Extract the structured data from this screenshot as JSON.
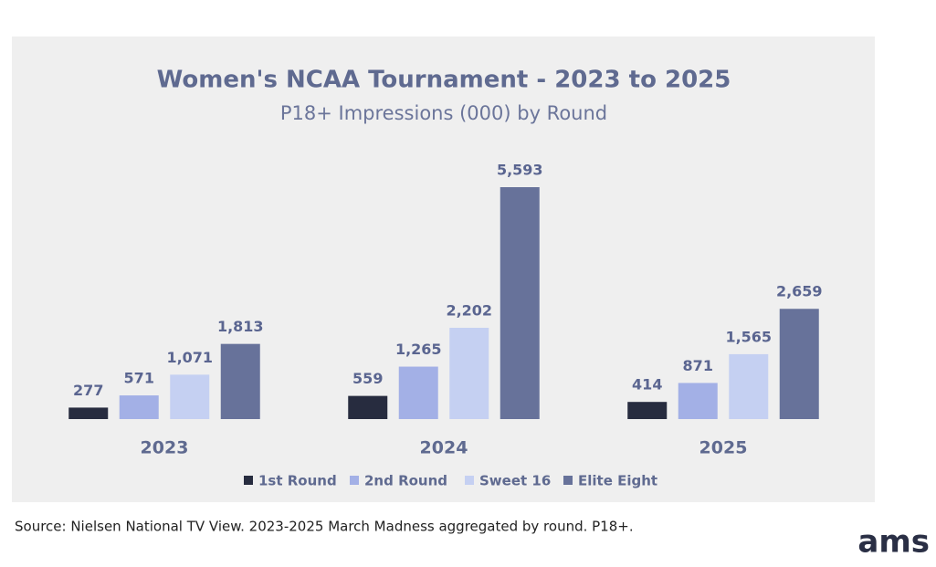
{
  "chart_data": {
    "type": "bar",
    "title": "Women's NCAA Tournament - 2023 to 2025",
    "subtitle": "P18+ Impressions (000) by Round",
    "categories": [
      "2023",
      "2024",
      "2025"
    ],
    "series": [
      {
        "name": "1st Round",
        "color": "#272c3f",
        "values": [
          277,
          559,
          414
        ]
      },
      {
        "name": "2nd Round",
        "color": "#a3b0e6",
        "values": [
          571,
          1265,
          871
        ],
        "value_labels": [
          "571",
          "1,265",
          "871"
        ]
      },
      {
        "name": "Sweet 16",
        "color": "#c5d0f2",
        "values": [
          1071,
          2202,
          1565
        ],
        "value_labels": [
          "1,071",
          "2,202",
          "1,565"
        ]
      },
      {
        "name": "Elite Eight",
        "color": "#67729a",
        "values": [
          1813,
          5593,
          2659
        ],
        "value_labels": [
          "1,813",
          "5,593",
          "2,659"
        ]
      }
    ],
    "legend": "bottom"
  },
  "source": "Source: Nielsen National TV View. 2023-2025 March Madness aggregated by round. P18+.",
  "logo": "ams"
}
